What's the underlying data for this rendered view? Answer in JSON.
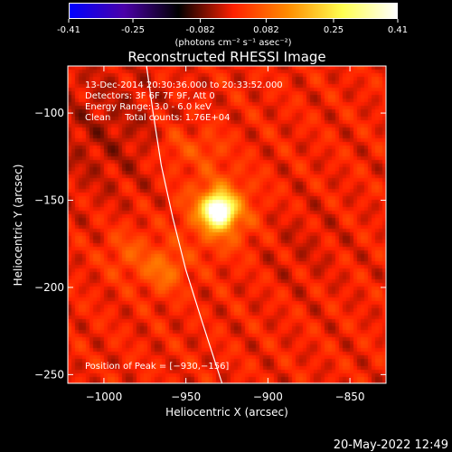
{
  "colorbar": {
    "ticks": [
      "-0.41",
      "-0.25",
      "-0.082",
      "0.082",
      "0.25",
      "0.41"
    ],
    "tick_values": [
      -0.41,
      -0.25,
      -0.082,
      0.082,
      0.25,
      0.41
    ],
    "min": -0.41,
    "max": 0.41,
    "units": "(photons cm⁻² s⁻¹ asec⁻²)",
    "stops": [
      "#0000ff",
      "#4b00a8",
      "#000000",
      "#ff2000",
      "#ff8c00",
      "#ffff50",
      "#ffffff"
    ]
  },
  "chart_data": {
    "type": "heatmap",
    "title": "Reconstructed RHESSI Image",
    "xlabel": "Heliocentric X (arcsec)",
    "ylabel": "Heliocentric Y (arcsec)",
    "xlim": [
      -1022,
      -828
    ],
    "ylim": [
      -255,
      -73
    ],
    "xticks": [
      -1000,
      -950,
      -900,
      -850
    ],
    "xtick_labels": [
      "−1000",
      "−950",
      "−900",
      "−850"
    ],
    "yticks": [
      -100,
      -150,
      -200,
      -250
    ],
    "ytick_labels": [
      "−100",
      "−150",
      "−200",
      "−250"
    ],
    "annotations": [
      "13-Dec-2014 20:30:36.000 to 20:33:52.000",
      "Detectors: 3F 6F 7F 9F, Att 0",
      "Energy Range: 3.0 - 6.0 keV",
      "Clean     Total counts: 1.76E+04"
    ],
    "peak_label": "Position of Peak = [−930,−156]",
    "peak": {
      "x": -930,
      "y": -156,
      "value": 0.41
    },
    "sources": [
      {
        "x": -930,
        "y": -156,
        "value": 0.41,
        "sigma": 6
      },
      {
        "x": -930,
        "y": -156,
        "value": 0.14,
        "sigma": 14
      },
      {
        "x": -963,
        "y": -190,
        "value": 0.1,
        "sigma": 9
      },
      {
        "x": -985,
        "y": -180,
        "value": 0.06,
        "sigma": 10
      },
      {
        "x": -955,
        "y": -120,
        "value": 0.05,
        "sigma": 9
      },
      {
        "x": -935,
        "y": -120,
        "value": 0.045,
        "sigma": 7
      },
      {
        "x": -1000,
        "y": -110,
        "value": -0.04,
        "sigma": 28
      },
      {
        "x": -880,
        "y": -175,
        "value": -0.02,
        "sigma": 18
      }
    ],
    "limb_arc": [
      [
        -974,
        -73
      ],
      [
        -970,
        -100
      ],
      [
        -965,
        -130
      ],
      [
        -958,
        -160
      ],
      [
        -950,
        -190
      ],
      [
        -940,
        -220
      ],
      [
        -928,
        -255
      ]
    ]
  },
  "timestamp": "20-May-2022 12:49"
}
